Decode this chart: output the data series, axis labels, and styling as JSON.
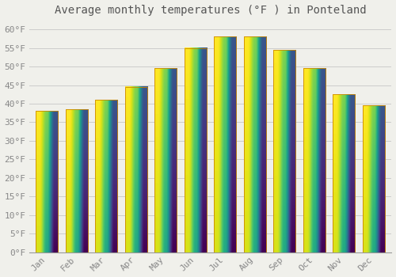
{
  "title": "Average monthly temperatures (°F ) in Ponteland",
  "months": [
    "Jan",
    "Feb",
    "Mar",
    "Apr",
    "May",
    "Jun",
    "Jul",
    "Aug",
    "Sep",
    "Oct",
    "Nov",
    "Dec"
  ],
  "temperatures": [
    38,
    38.5,
    41,
    44.5,
    49.5,
    55,
    58,
    58,
    54.5,
    49.5,
    42.5,
    39.5
  ],
  "bar_color_bottom": "#F0A010",
  "bar_color_top": "#FFD050",
  "ylim": [
    0,
    62
  ],
  "yticks": [
    0,
    5,
    10,
    15,
    20,
    25,
    30,
    35,
    40,
    45,
    50,
    55,
    60
  ],
  "background_color": "#f0f0eb",
  "grid_color": "#cccccc",
  "title_fontsize": 10,
  "tick_fontsize": 8,
  "tick_color": "#888888",
  "title_color": "#555555",
  "bar_edge_color": "#cc8800",
  "bar_width": 0.75
}
